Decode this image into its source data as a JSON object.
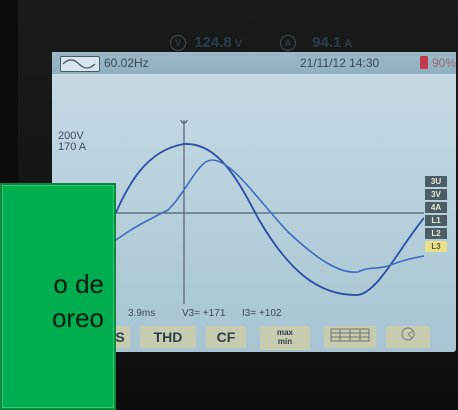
{
  "header": {
    "frequency": "60.02Hz",
    "datetime": "21/11/12 14:30",
    "battery": "90%"
  },
  "readouts": {
    "voltage_symbol": "V",
    "voltage_value": "124.8",
    "voltage_unit": "V",
    "current_symbol": "A",
    "current_value": "94.1",
    "current_unit": "A"
  },
  "scale": {
    "voltage": "200V",
    "current": "170 A"
  },
  "side_tabs": [
    "3U",
    "3V",
    "4A",
    "L1",
    "L2",
    "L3"
  ],
  "cursor": {
    "time": "3.9ms",
    "v3": "V3= +171",
    "i3": "I3= +102"
  },
  "softkeys": [
    "S",
    "THD",
    "CF",
    "max\nmin",
    "",
    ""
  ],
  "label": {
    "line1": "o de",
    "line2": "oreo"
  },
  "colors": {
    "trace": "#2d4fa5",
    "screen": "#c3d8e2",
    "label_bg": "#00ad4f"
  }
}
